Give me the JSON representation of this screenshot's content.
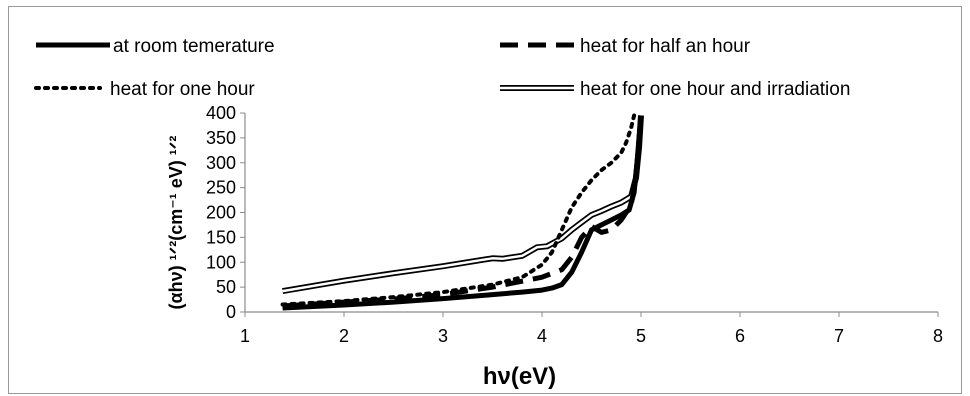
{
  "chart_data": {
    "type": "line",
    "title": "",
    "xlabel": "hν(eV)",
    "ylabel": "(αhν) ¹ᐟ²(cm⁻¹ eV) ¹ᐟ²",
    "xlim": [
      1,
      8
    ],
    "ylim": [
      0,
      400
    ],
    "x_ticks": [
      "1",
      "2",
      "3",
      "4",
      "5",
      "6",
      "7",
      "8"
    ],
    "y_ticks": [
      "0",
      "50",
      "100",
      "150",
      "200",
      "250",
      "300",
      "350",
      "400"
    ],
    "grid": false,
    "legend_position": "top",
    "series": [
      {
        "name": "at room temerature",
        "style": "solid",
        "color": "#000000",
        "points": [
          [
            1.38,
            8
          ],
          [
            2.0,
            14
          ],
          [
            2.5,
            20
          ],
          [
            3.0,
            27
          ],
          [
            3.5,
            35
          ],
          [
            3.8,
            40
          ],
          [
            4.0,
            44
          ],
          [
            4.1,
            48
          ],
          [
            4.2,
            55
          ],
          [
            4.3,
            80
          ],
          [
            4.4,
            120
          ],
          [
            4.5,
            165
          ],
          [
            4.6,
            175
          ],
          [
            4.7,
            185
          ],
          [
            4.8,
            195
          ],
          [
            4.88,
            205
          ],
          [
            4.93,
            240
          ],
          [
            4.96,
            300
          ],
          [
            4.98,
            350
          ],
          [
            5.0,
            395
          ]
        ]
      },
      {
        "name": "heat for half an hour",
        "style": "dash",
        "color": "#000000",
        "points": [
          [
            1.38,
            12
          ],
          [
            2.0,
            20
          ],
          [
            2.5,
            26
          ],
          [
            3.0,
            35
          ],
          [
            3.5,
            50
          ],
          [
            4.0,
            70
          ],
          [
            4.2,
            85
          ],
          [
            4.3,
            110
          ],
          [
            4.4,
            150
          ],
          [
            4.5,
            172
          ],
          [
            4.6,
            160
          ],
          [
            4.7,
            165
          ],
          [
            4.8,
            185
          ],
          [
            4.9,
            215
          ],
          [
            4.95,
            270
          ],
          [
            5.0,
            395
          ]
        ]
      },
      {
        "name": "heat for one hour",
        "style": "dot",
        "color": "#000000",
        "points": [
          [
            1.38,
            15
          ],
          [
            2.0,
            22
          ],
          [
            2.5,
            30
          ],
          [
            3.0,
            40
          ],
          [
            3.5,
            55
          ],
          [
            3.8,
            70
          ],
          [
            4.0,
            95
          ],
          [
            4.1,
            120
          ],
          [
            4.2,
            165
          ],
          [
            4.3,
            210
          ],
          [
            4.4,
            240
          ],
          [
            4.5,
            265
          ],
          [
            4.6,
            285
          ],
          [
            4.7,
            300
          ],
          [
            4.8,
            320
          ],
          [
            4.85,
            340
          ],
          [
            4.9,
            370
          ],
          [
            4.93,
            395
          ]
        ]
      },
      {
        "name": "heat for one hour and irradiation",
        "style": "double",
        "color": "#000000",
        "points": [
          [
            1.38,
            42
          ],
          [
            2.0,
            63
          ],
          [
            2.5,
            78
          ],
          [
            3.0,
            92
          ],
          [
            3.4,
            105
          ],
          [
            3.5,
            108
          ],
          [
            3.6,
            107
          ],
          [
            3.8,
            113
          ],
          [
            3.95,
            130
          ],
          [
            4.05,
            132
          ],
          [
            4.2,
            148
          ],
          [
            4.3,
            165
          ],
          [
            4.4,
            180
          ],
          [
            4.5,
            195
          ],
          [
            4.6,
            203
          ],
          [
            4.7,
            212
          ],
          [
            4.8,
            220
          ],
          [
            4.9,
            232
          ],
          [
            4.95,
            270
          ],
          [
            4.98,
            330
          ],
          [
            5.0,
            395
          ]
        ]
      }
    ]
  }
}
